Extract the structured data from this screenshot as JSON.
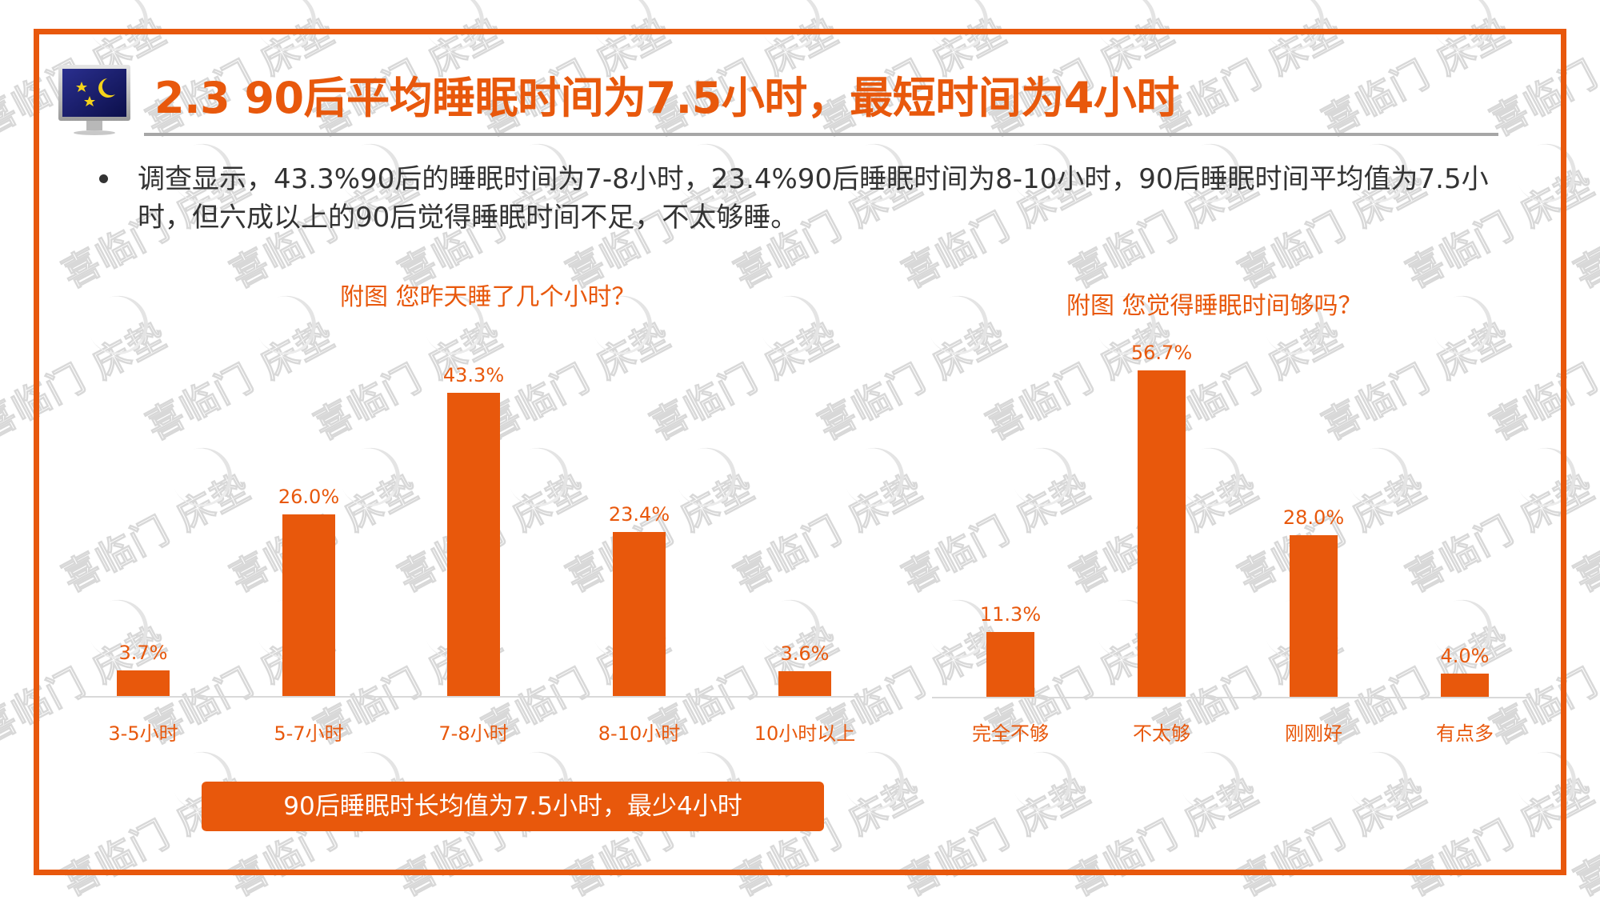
{
  "slide": {
    "title": "2.3  90后平均睡眠时间为7.5小时，最短时间为4小时",
    "bullet_text": "调查显示，43.3%90后的睡眠时间为7-8小时，23.4%90后睡眠时间为8-10小时，90后睡眠时间平均值为7.5小时，但六成以上的90后觉得睡眠时间不足，不太够睡。",
    "callout": "90后睡眠时长均值为7.5小时，最少4小时",
    "icon": "monitor-night-icon",
    "watermark_text": "喜临门 床垫",
    "colors": {
      "accent": "#E8580C",
      "text": "#333333",
      "rule": "#A6A6A6",
      "axis": "#D9D9D9"
    }
  },
  "chart_data": [
    {
      "type": "bar",
      "title": "附图  您昨天睡了几个小时？",
      "categories": [
        "3-5小时",
        "5-7小时",
        "7-8小时",
        "8-10小时",
        "10小时以上"
      ],
      "values": [
        3.7,
        26.0,
        43.3,
        23.4,
        3.6
      ],
      "value_labels": [
        "3.7%",
        "26.0%",
        "43.3%",
        "23.4%",
        "3.6%"
      ],
      "unit": "%",
      "xlabel": "",
      "ylabel": "",
      "grid": false,
      "legend": null,
      "color": "#E8580C"
    },
    {
      "type": "bar",
      "title": "附图   您觉得睡眠时间够吗？",
      "categories": [
        "完全不够",
        "不太够",
        "刚刚好",
        "有点多"
      ],
      "values": [
        11.3,
        56.7,
        28.0,
        4.0
      ],
      "value_labels": [
        "11.3%",
        "56.7%",
        "28.0%",
        "4.0%"
      ],
      "unit": "%",
      "xlabel": "",
      "ylabel": "",
      "grid": false,
      "legend": null,
      "color": "#E8580C"
    }
  ]
}
